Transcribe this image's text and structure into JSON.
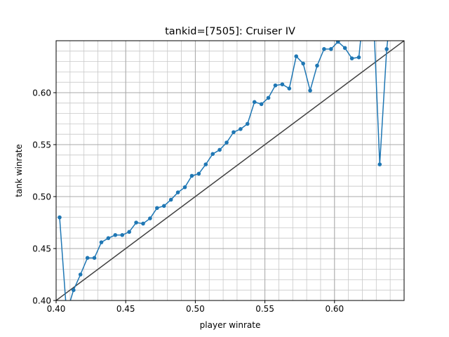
{
  "chart_data": {
    "type": "line",
    "title": "tankid=[7505]: Cruiser IV",
    "xlabel": "player winrate",
    "ylabel": "tank winrate",
    "xlim": [
      0.4,
      0.65
    ],
    "ylim": [
      0.4,
      0.65
    ],
    "grid": true,
    "minor_grid_step": 0.01,
    "x_major_ticks": [
      0.4,
      0.45,
      0.5,
      0.55,
      0.6
    ],
    "x_tick_labels": [
      "0.40",
      "0.45",
      "0.50",
      "0.55",
      "0.60"
    ],
    "y_major_ticks": [
      0.4,
      0.45,
      0.5,
      0.55,
      0.6
    ],
    "y_tick_labels": [
      "0.40",
      "0.45",
      "0.50",
      "0.55",
      "0.60"
    ],
    "reference_line": {
      "x": [
        0.4,
        0.65
      ],
      "y": [
        0.4,
        0.65
      ],
      "color": "#404040"
    },
    "series": [
      {
        "color": "#1f77b4",
        "marker": "circle",
        "x": [
          0.4025,
          0.4075,
          0.4125,
          0.4175,
          0.4225,
          0.4275,
          0.4325,
          0.4375,
          0.4425,
          0.4475,
          0.4525,
          0.4575,
          0.4625,
          0.4675,
          0.4725,
          0.4775,
          0.4825,
          0.4875,
          0.4925,
          0.4975,
          0.5025,
          0.5075,
          0.5125,
          0.5175,
          0.5225,
          0.5275,
          0.5325,
          0.5375,
          0.5425,
          0.5475,
          0.5525,
          0.5575,
          0.5625,
          0.5675,
          0.5725,
          0.5775,
          0.5825,
          0.5875,
          0.5925,
          0.5975,
          0.6025,
          0.6075,
          0.6125,
          0.6175,
          0.6225,
          0.6275,
          0.6325,
          0.6375,
          0.6425
        ],
        "y": [
          0.48,
          0.388,
          0.41,
          0.425,
          0.441,
          0.441,
          0.456,
          0.46,
          0.463,
          0.463,
          0.466,
          0.475,
          0.474,
          0.479,
          0.489,
          0.491,
          0.497,
          0.504,
          0.509,
          0.52,
          0.522,
          0.531,
          0.541,
          0.545,
          0.552,
          0.562,
          0.565,
          0.57,
          0.591,
          0.589,
          0.595,
          0.607,
          0.608,
          0.604,
          0.635,
          0.628,
          0.602,
          0.626,
          0.642,
          0.642,
          0.649,
          0.643,
          0.633,
          0.634,
          0.7,
          0.69,
          0.531,
          0.642,
          0.7
        ]
      }
    ]
  }
}
